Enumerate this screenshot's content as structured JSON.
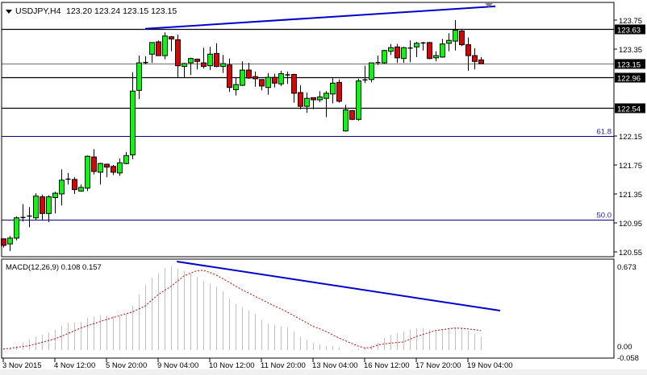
{
  "chart_data": [
    {
      "type": "candlestick",
      "title": "USDJPY,H4",
      "ohlc_readout": "123.20 123.24 123.15 123.15",
      "ylim": [
        120.5,
        123.95
      ],
      "price_ticks": [
        "123.75",
        "123.35",
        "122.15",
        "121.75",
        "121.35",
        "120.95",
        "120.55"
      ],
      "price_tick_values": [
        123.75,
        123.35,
        122.15,
        121.75,
        121.35,
        120.95,
        120.55
      ],
      "colors": {
        "bull": "#00ff00",
        "bear": "#e00000",
        "outline": "#000000",
        "trendline": "#0000cc",
        "fibo": "#000080",
        "bid": "#808080"
      },
      "horizontal_lines": [
        {
          "price": 123.63,
          "label": "123.63",
          "color": "#000000"
        },
        {
          "price": 123.15,
          "label": "123.15",
          "color": "#808080"
        },
        {
          "price": 122.96,
          "label": "122.96",
          "color": "#000000"
        },
        {
          "price": 122.54,
          "label": "122.54",
          "color": "#000000"
        }
      ],
      "fibo_levels": [
        {
          "price": 122.15,
          "label": "61.8"
        },
        {
          "price": 120.99,
          "label": "50.0"
        }
      ],
      "trendline": {
        "from": {
          "bar": 23,
          "price": 123.63
        },
        "to": {
          "bar": 77.25,
          "price": 123.94
        }
      },
      "open": [
        120.73,
        120.66,
        120.74,
        121.03,
        121.04,
        121.02,
        121.31,
        121.08,
        121.3,
        121.35,
        121.55,
        121.55,
        121.39,
        121.43,
        121.86,
        121.65,
        121.76,
        121.73,
        121.64,
        121.77,
        121.89,
        122.78,
        123.16,
        123.28,
        123.45,
        123.26,
        123.52,
        123.48,
        123.11,
        123.16,
        123.21,
        123.16,
        123.12,
        123.29,
        123.11,
        123.13,
        122.79,
        122.85,
        123.06,
        122.97,
        122.93,
        122.82,
        122.96,
        122.87,
        123.0,
        123.0,
        122.75,
        122.56,
        122.68,
        122.65,
        122.67,
        122.73,
        122.89,
        122.22,
        122.5,
        122.38,
        122.92,
        122.93,
        123.16,
        123.16,
        123.32,
        123.38,
        123.22,
        123.36,
        123.38,
        123.43,
        123.44,
        123.23,
        123.24,
        123.43,
        123.46,
        123.6,
        123.41,
        123.26,
        123.2
      ],
      "high": [
        120.73,
        120.77,
        121.04,
        121.21,
        121.17,
        121.36,
        121.34,
        121.33,
        121.38,
        121.69,
        121.64,
        121.58,
        121.48,
        121.88,
        121.97,
        121.78,
        121.77,
        121.75,
        121.84,
        121.93,
        123.03,
        123.26,
        123.25,
        123.44,
        123.47,
        123.58,
        123.53,
        123.55,
        123.16,
        123.23,
        123.22,
        123.37,
        123.38,
        123.43,
        123.27,
        123.22,
        122.96,
        123.18,
        123.16,
        123.04,
        122.93,
        123.02,
        123.01,
        123.05,
        123.04,
        123.01,
        122.85,
        122.75,
        122.68,
        122.77,
        122.77,
        122.96,
        122.93,
        122.58,
        122.51,
        122.94,
        123.12,
        123.16,
        123.26,
        123.34,
        123.42,
        123.42,
        123.38,
        123.47,
        123.45,
        123.45,
        123.45,
        123.32,
        123.49,
        123.57,
        123.75,
        123.63,
        123.51,
        123.36,
        123.24
      ],
      "low": [
        120.61,
        120.56,
        120.71,
        120.97,
        120.89,
        120.99,
        120.99,
        120.96,
        121.08,
        121.19,
        121.48,
        121.35,
        121.38,
        121.39,
        121.62,
        121.48,
        121.58,
        121.61,
        121.6,
        121.76,
        121.83,
        122.66,
        123.14,
        123.16,
        123.26,
        123.21,
        123.32,
        122.95,
        122.95,
        122.99,
        123.07,
        123.08,
        123.06,
        123.1,
        123.02,
        122.76,
        122.71,
        122.84,
        122.94,
        122.83,
        122.78,
        122.72,
        122.82,
        122.84,
        122.87,
        122.61,
        122.52,
        122.47,
        122.52,
        122.62,
        122.41,
        122.6,
        122.61,
        122.21,
        122.37,
        122.36,
        122.88,
        122.89,
        123.13,
        123.15,
        123.27,
        123.16,
        123.16,
        123.17,
        123.24,
        123.33,
        123.21,
        123.18,
        123.23,
        123.32,
        123.33,
        123.39,
        123.05,
        123.07,
        123.15
      ],
      "close": [
        120.64,
        120.74,
        121.02,
        121.02,
        121.05,
        121.32,
        121.08,
        121.31,
        121.36,
        121.54,
        121.56,
        121.41,
        121.44,
        121.87,
        121.66,
        121.77,
        121.72,
        121.65,
        121.78,
        121.88,
        122.77,
        123.16,
        123.17,
        123.44,
        123.26,
        123.53,
        123.49,
        123.12,
        123.15,
        123.22,
        123.18,
        123.11,
        123.28,
        123.11,
        123.15,
        122.82,
        122.86,
        123.06,
        122.95,
        122.94,
        122.84,
        122.96,
        122.88,
        123.01,
        122.99,
        122.74,
        122.56,
        122.67,
        122.65,
        122.69,
        122.74,
        122.88,
        122.63,
        122.51,
        122.38,
        122.91,
        122.93,
        123.16,
        123.17,
        123.33,
        123.37,
        123.23,
        123.37,
        123.37,
        123.43,
        123.44,
        123.22,
        123.26,
        123.42,
        123.47,
        123.61,
        123.41,
        123.26,
        123.18,
        123.15
      ],
      "time_labels": [
        "3 Nov 2015",
        "4 Nov 12:00",
        "5 Nov 20:00",
        "9 Nov 04:00",
        "10 Nov 12:00",
        "11 Nov 20:00",
        "13 Nov 04:00",
        "16 Nov 12:00",
        "17 Nov 20:00",
        "19 Nov 04:00"
      ],
      "time_label_bars": [
        1,
        9,
        17,
        25,
        33,
        41,
        49,
        57,
        65,
        73
      ]
    },
    {
      "type": "bar",
      "title": "MACD(12,26,9) 0.108 0.157",
      "ylim": [
        -0.058,
        0.673
      ],
      "ticks": [
        "0.673",
        "0.00",
        "-0.058"
      ],
      "tick_values": [
        0.673,
        0,
        -0.058
      ],
      "colors": {
        "histogram": "#c0c0c0",
        "signal": "#cc0000",
        "trendline": "#0000cc"
      },
      "macd": [
        0.005,
        0.011,
        0.032,
        0.06,
        0.086,
        0.112,
        0.123,
        0.14,
        0.166,
        0.194,
        0.22,
        0.222,
        0.227,
        0.259,
        0.27,
        0.28,
        0.276,
        0.274,
        0.274,
        0.285,
        0.356,
        0.447,
        0.522,
        0.583,
        0.619,
        0.658,
        0.673,
        0.654,
        0.636,
        0.615,
        0.587,
        0.555,
        0.533,
        0.507,
        0.474,
        0.414,
        0.371,
        0.345,
        0.317,
        0.291,
        0.244,
        0.212,
        0.205,
        0.19,
        0.183,
        0.151,
        0.108,
        0.08,
        0.058,
        0.046,
        0.032,
        0.032,
        0.021,
        0.0,
        -0.006,
        0.011,
        0.021,
        0.037,
        0.058,
        0.097,
        0.123,
        0.136,
        0.147,
        0.166,
        0.173,
        0.179,
        0.166,
        0.157,
        0.166,
        0.166,
        0.179,
        0.179,
        0.157,
        0.129,
        0.108
      ],
      "signal": [
        0.008,
        0.014,
        0.02,
        0.028,
        0.035,
        0.048,
        0.062,
        0.076,
        0.09,
        0.11,
        0.132,
        0.155,
        0.177,
        0.195,
        0.212,
        0.228,
        0.246,
        0.261,
        0.276,
        0.291,
        0.306,
        0.33,
        0.355,
        0.4,
        0.446,
        0.48,
        0.512,
        0.555,
        0.596,
        0.618,
        0.638,
        0.641,
        0.625,
        0.603,
        0.575,
        0.545,
        0.515,
        0.485,
        0.46,
        0.433,
        0.407,
        0.381,
        0.355,
        0.332,
        0.305,
        0.277,
        0.249,
        0.22,
        0.191,
        0.172,
        0.149,
        0.123,
        0.097,
        0.075,
        0.053,
        0.032,
        0.017,
        0.02,
        0.04,
        0.049,
        0.055,
        0.061,
        0.065,
        0.086,
        0.108,
        0.125,
        0.141,
        0.157,
        0.164,
        0.171,
        0.177,
        0.175,
        0.17,
        0.164,
        0.157
      ],
      "trendline": {
        "from": {
          "bar": 27.9,
          "value": 0.712
        },
        "to": {
          "bar": 78,
          "value": 0.317
        }
      }
    }
  ]
}
